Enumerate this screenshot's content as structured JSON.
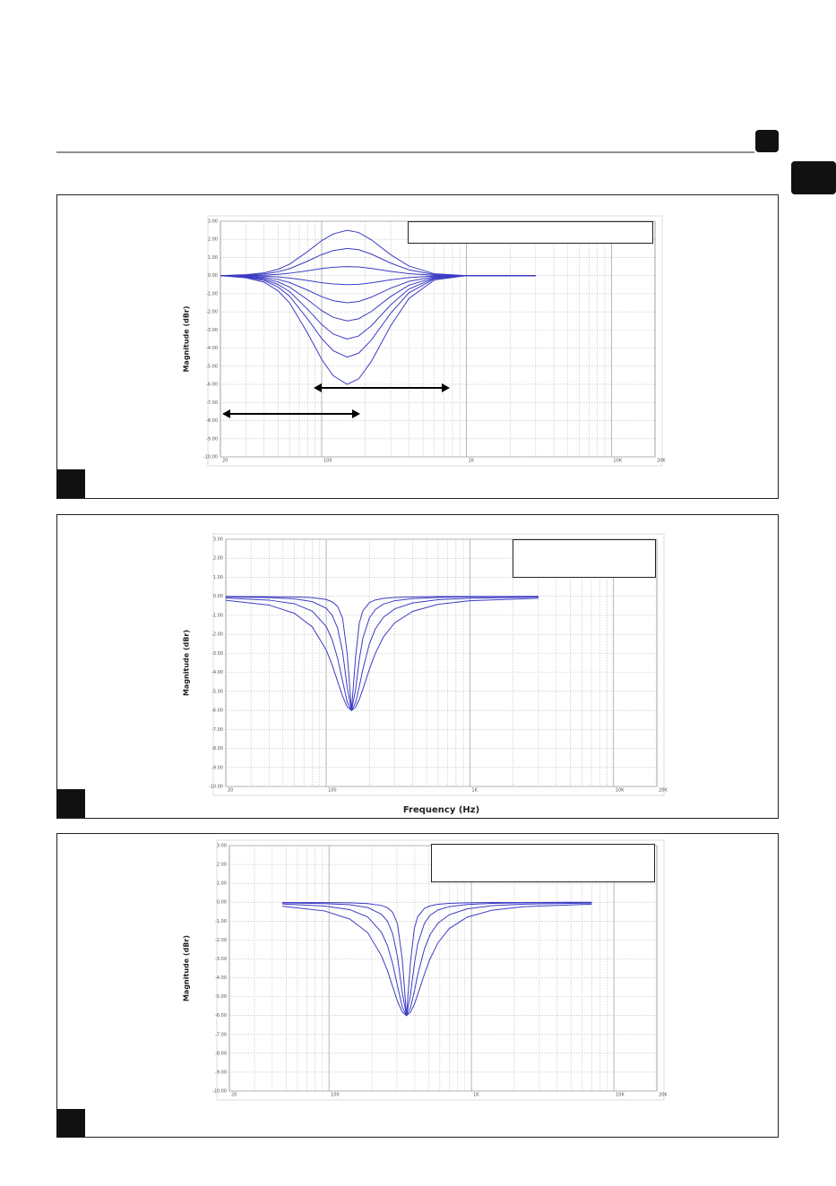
{
  "chart_data": [
    {
      "type": "line",
      "y_label": "Magnitude (dBr)",
      "x_scale": "log",
      "grid": true,
      "xlim": [
        20,
        20000
      ],
      "ylim": [
        -10,
        3
      ],
      "xticks": [
        20,
        100,
        {
          "value": 1000,
          "label": "1K"
        },
        {
          "value": 10000,
          "label": "10K"
        },
        {
          "value": 20000,
          "label": "20K"
        }
      ],
      "xminorticks": [
        30,
        40,
        50,
        60,
        70,
        80,
        90,
        200,
        300,
        400,
        500,
        600,
        700,
        800,
        900,
        2000,
        3000,
        4000,
        5000,
        6000,
        7000,
        8000,
        9000
      ],
      "yticks": [
        {
          "value": 3,
          "label": "3.00"
        },
        {
          "value": 2,
          "label": "2.00"
        },
        {
          "value": 1,
          "label": "1.00"
        },
        {
          "value": 0,
          "label": "0.00"
        },
        {
          "value": -1,
          "label": "-1.00"
        },
        {
          "value": -2,
          "label": "-2.00"
        },
        {
          "value": -3,
          "label": "-3.00"
        },
        {
          "value": -4,
          "label": "-4.00"
        },
        {
          "value": -5,
          "label": "-5.00"
        },
        {
          "value": -6,
          "label": "-6.00"
        },
        {
          "value": -7,
          "label": "-7.00"
        },
        {
          "value": -8,
          "label": "-8.00"
        },
        {
          "value": -9,
          "label": "-9.00"
        },
        {
          "value": -10,
          "label": "-10.00"
        }
      ],
      "x": [
        20,
        30,
        40,
        50,
        60,
        80,
        100,
        120,
        150,
        180,
        220,
        300,
        400,
        600,
        1000,
        2000,
        3000
      ],
      "series": [
        {
          "color": "#3c3cc4",
          "values": [
            0,
            0.05,
            0.15,
            0.35,
            0.63,
            1.33,
            1.93,
            2.3,
            2.5,
            2.38,
            1.98,
            1.15,
            0.53,
            0.1,
            0,
            0,
            0
          ]
        },
        {
          "color": "#3c3cc4",
          "values": [
            0,
            0.03,
            0.09,
            0.21,
            0.38,
            0.8,
            1.16,
            1.38,
            1.5,
            1.43,
            1.19,
            0.69,
            0.32,
            0.06,
            0,
            0,
            0
          ]
        },
        {
          "color": "#3c3cc4",
          "values": [
            0,
            0.01,
            0.03,
            0.07,
            0.13,
            0.27,
            0.39,
            0.46,
            0.5,
            0.48,
            0.4,
            0.23,
            0.11,
            0.02,
            0,
            0,
            0
          ]
        },
        {
          "color": "#3c3cc4",
          "values": [
            0,
            -0.01,
            -0.03,
            -0.07,
            -0.13,
            -0.27,
            -0.39,
            -0.46,
            -0.5,
            -0.48,
            -0.4,
            -0.23,
            -0.11,
            -0.02,
            0,
            0,
            0
          ]
        },
        {
          "color": "#3c3cc4",
          "values": [
            0,
            -0.03,
            -0.09,
            -0.21,
            -0.38,
            -0.8,
            -1.16,
            -1.38,
            -1.5,
            -1.43,
            -1.19,
            -0.69,
            -0.32,
            -0.06,
            0,
            0,
            0
          ]
        },
        {
          "color": "#3c3cc4",
          "values": [
            0,
            -0.05,
            -0.15,
            -0.35,
            -0.63,
            -1.33,
            -1.93,
            -2.3,
            -2.5,
            -2.38,
            -1.98,
            -1.15,
            -0.53,
            -0.1,
            0,
            0,
            0
          ]
        },
        {
          "color": "#3c3cc4",
          "values": [
            0,
            -0.07,
            -0.21,
            -0.49,
            -0.88,
            -1.86,
            -2.7,
            -3.22,
            -3.5,
            -3.33,
            -2.77,
            -1.61,
            -0.74,
            -0.14,
            0,
            0,
            0
          ]
        },
        {
          "color": "#3c3cc4",
          "values": [
            0,
            -0.09,
            -0.27,
            -0.63,
            -1.13,
            -2.39,
            -3.47,
            -4.14,
            -4.5,
            -4.28,
            -3.56,
            -2.07,
            -0.95,
            -0.18,
            0,
            0,
            0
          ]
        },
        {
          "color": "#3c3cc4",
          "values": [
            0,
            -0.12,
            -0.36,
            -0.84,
            -1.5,
            -3.18,
            -4.62,
            -5.52,
            -6,
            -5.7,
            -4.74,
            -2.76,
            -1.26,
            -0.24,
            0,
            0,
            0
          ]
        }
      ]
    },
    {
      "type": "line",
      "y_label": "Magnitude (dBr)",
      "x_label": "Frequency (Hz)",
      "x_scale": "log",
      "grid": true,
      "xlim": [
        20,
        20000
      ],
      "ylim": [
        -10,
        3
      ],
      "xticks": [
        20,
        100,
        {
          "value": 1000,
          "label": "1K"
        },
        {
          "value": 10000,
          "label": "10K"
        },
        {
          "value": 20000,
          "label": "20K"
        }
      ],
      "xminorticks": [
        30,
        40,
        50,
        60,
        70,
        80,
        90,
        200,
        300,
        400,
        500,
        600,
        700,
        800,
        900,
        2000,
        3000,
        4000,
        5000,
        6000,
        7000,
        8000,
        9000
      ],
      "yticks": [
        {
          "value": 3,
          "label": "3.00"
        },
        {
          "value": 2,
          "label": "2.00"
        },
        {
          "value": 1,
          "label": "1.00"
        },
        {
          "value": 0,
          "label": "0.00"
        },
        {
          "value": -1,
          "label": "-1.00"
        },
        {
          "value": -2,
          "label": "-2.00"
        },
        {
          "value": -3,
          "label": "-3.00"
        },
        {
          "value": -4,
          "label": "-4.00"
        },
        {
          "value": -5,
          "label": "-5.00"
        },
        {
          "value": -6,
          "label": "-6.00"
        },
        {
          "value": -7,
          "label": "-7.00"
        },
        {
          "value": -8,
          "label": "-8.00"
        },
        {
          "value": -9,
          "label": "-9.00"
        },
        {
          "value": -10,
          "label": "-10.00"
        }
      ],
      "x": [
        20,
        40,
        60,
        80,
        100,
        110,
        120,
        130,
        140,
        150,
        160,
        170,
        180,
        200,
        220,
        250,
        300,
        400,
        600,
        1000,
        3000
      ],
      "series": [
        {
          "color": "#3c3cc4",
          "values": [
            -0.01,
            -0.02,
            -0.03,
            -0.07,
            -0.17,
            -0.29,
            -0.53,
            -1.15,
            -3.02,
            -6,
            -3.22,
            -1.4,
            -0.76,
            -0.33,
            -0.19,
            -0.11,
            -0.06,
            -0.03,
            -0.01,
            -0.01,
            0
          ]
        },
        {
          "color": "#3c3cc4",
          "values": [
            -0.03,
            -0.07,
            -0.13,
            -0.28,
            -0.63,
            -1,
            -1.67,
            -2.91,
            -4.8,
            -6,
            -4.93,
            -3.3,
            -2.2,
            -1.13,
            -0.69,
            -0.41,
            -0.23,
            -0.12,
            -0.06,
            -0.03,
            -0.01
          ]
        },
        {
          "color": "#3c3cc4",
          "values": [
            -0.09,
            -0.2,
            -0.39,
            -0.78,
            -1.58,
            -2.28,
            -3.25,
            -4.45,
            -5.55,
            -6,
            -5.6,
            -4.74,
            -3.83,
            -2.49,
            -1.71,
            -1.1,
            -0.66,
            -0.35,
            -0.18,
            -0.1,
            -0.04
          ]
        },
        {
          "color": "#3c3cc4",
          "values": [
            -0.21,
            -0.46,
            -0.89,
            -1.61,
            -2.82,
            -3.61,
            -4.47,
            -5.26,
            -5.81,
            -6,
            -5.83,
            -5.42,
            -4.88,
            -3.82,
            -2.99,
            -2.14,
            -1.39,
            -0.79,
            -0.42,
            -0.23,
            -0.1
          ]
        }
      ]
    },
    {
      "type": "line",
      "y_label": "Magnitude (dBr)",
      "x_scale": "log",
      "grid": true,
      "xlim": [
        20,
        20000
      ],
      "ylim": [
        -10,
        3
      ],
      "xticks": [
        20,
        100,
        {
          "value": 1000,
          "label": "1K"
        },
        {
          "value": 10000,
          "label": "10K"
        },
        {
          "value": 20000,
          "label": "20K"
        }
      ],
      "xminorticks": [
        30,
        40,
        50,
        60,
        70,
        80,
        90,
        200,
        300,
        400,
        500,
        600,
        700,
        800,
        900,
        2000,
        3000,
        4000,
        5000,
        6000,
        7000,
        8000,
        9000
      ],
      "yticks": [
        {
          "value": 3,
          "label": "3.00"
        },
        {
          "value": 2,
          "label": "2.00"
        },
        {
          "value": 1,
          "label": "1.00"
        },
        {
          "value": 0,
          "label": "0.00"
        },
        {
          "value": -1,
          "label": "-1.00"
        },
        {
          "value": -2,
          "label": "-2.00"
        },
        {
          "value": -3,
          "label": "-3.00"
        },
        {
          "value": -4,
          "label": "-4.00"
        },
        {
          "value": -5,
          "label": "-5.00"
        },
        {
          "value": -6,
          "label": "-6.00"
        },
        {
          "value": -7,
          "label": "-7.00"
        },
        {
          "value": -8,
          "label": "-8.00"
        },
        {
          "value": -9,
          "label": "-9.00"
        },
        {
          "value": -10,
          "label": "-10.00"
        }
      ],
      "x": [
        47,
        93,
        140,
        187,
        233,
        257,
        280,
        303,
        327,
        350,
        373,
        397,
        420,
        467,
        513,
        583,
        700,
        933,
        1400,
        2333,
        7000
      ],
      "series": [
        {
          "color": "#3c3cc4",
          "values": [
            -0.01,
            -0.02,
            -0.03,
            -0.07,
            -0.17,
            -0.29,
            -0.53,
            -1.15,
            -3.02,
            -6,
            -3.22,
            -1.4,
            -0.76,
            -0.33,
            -0.19,
            -0.11,
            -0.06,
            -0.03,
            -0.01,
            -0.01,
            0
          ]
        },
        {
          "color": "#3c3cc4",
          "values": [
            -0.03,
            -0.07,
            -0.13,
            -0.28,
            -0.63,
            -1,
            -1.67,
            -2.91,
            -4.8,
            -6,
            -4.93,
            -3.3,
            -2.2,
            -1.13,
            -0.69,
            -0.41,
            -0.23,
            -0.12,
            -0.06,
            -0.03,
            -0.01
          ]
        },
        {
          "color": "#3c3cc4",
          "values": [
            -0.09,
            -0.2,
            -0.39,
            -0.78,
            -1.58,
            -2.28,
            -3.25,
            -4.45,
            -5.55,
            -6,
            -5.6,
            -4.74,
            -3.83,
            -2.49,
            -1.71,
            -1.1,
            -0.66,
            -0.35,
            -0.18,
            -0.1,
            -0.04
          ]
        },
        {
          "color": "#3c3cc4",
          "values": [
            -0.21,
            -0.46,
            -0.89,
            -1.61,
            -2.82,
            -3.61,
            -4.47,
            -5.26,
            -5.81,
            -6,
            -5.83,
            -5.42,
            -4.88,
            -3.82,
            -2.99,
            -2.14,
            -1.39,
            -0.79,
            -0.42,
            -0.23,
            -0.1
          ]
        }
      ]
    }
  ]
}
